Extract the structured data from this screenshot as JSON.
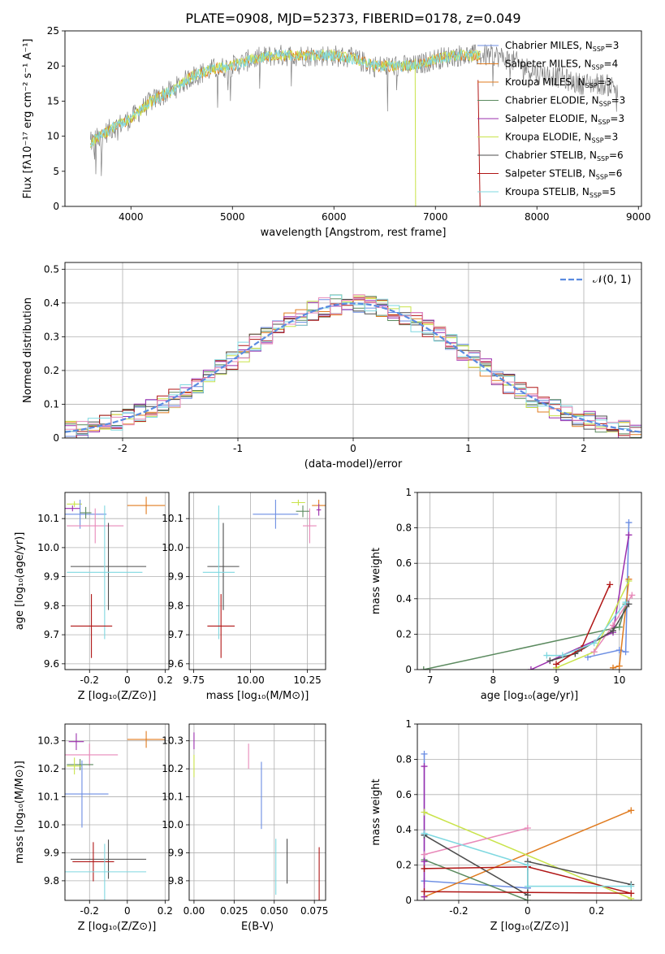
{
  "figure_title": "PLATE=0908, MJD=52373, FIBERID=0178, z=0.049",
  "colors": {
    "c1": "#6c8ee3",
    "c2": "#e07b1f",
    "c3": "#5b8a5f",
    "c4": "#9b2fae",
    "c5": "#c9e34a",
    "c6": "#4d4d4d",
    "c7": "#b01515",
    "c8": "#7fd8e0",
    "pink": "#e889b9",
    "grey": "#808080",
    "gauss": "#5a8be0"
  },
  "chart_data": [
    {
      "type": "line",
      "id": "spectrum",
      "xlabel": "wavelength [Angstrom, rest frame]",
      "ylabel": "Flux [fλ10⁻¹⁷ erg cm⁻² s⁻¹ A⁻¹]",
      "xlim": [
        3350,
        9030
      ],
      "ylim": [
        0,
        25
      ],
      "xticks": [
        4000,
        5000,
        6000,
        7000,
        8000,
        9000
      ],
      "yticks": [
        0,
        5,
        10,
        15,
        20,
        25
      ],
      "data_trend_x": [
        3600,
        3800,
        4000,
        4200,
        4400,
        4600,
        4800,
        5000,
        5200,
        5400,
        5600,
        5800,
        6000,
        6200,
        6400,
        6600,
        6800,
        7000,
        7200,
        7400,
        7600,
        7800,
        8000,
        8200,
        8400,
        8600,
        8800
      ],
      "data_trend_y": [
        9,
        11,
        12.5,
        15,
        16.5,
        18.5,
        19.5,
        20,
        21,
        21.5,
        21.5,
        21.5,
        21.5,
        21,
        20,
        20,
        20,
        21,
        21.5,
        21.5,
        21.5,
        20.5,
        19,
        18.5,
        17.5,
        17.5,
        17
      ],
      "legend": [
        {
          "label": "Chabrier MILES, N",
          "sub": "SSP",
          "val": "=3",
          "color": "c1"
        },
        {
          "label": "Salpeter MILES, N",
          "sub": "SSP",
          "val": "=4",
          "color": "c2"
        },
        {
          "label": "Kroupa MILES, N",
          "sub": "SSP",
          "val": "=3",
          "color": "c2"
        },
        {
          "label": "Chabrier ELODIE, N",
          "sub": "SSP",
          "val": "=3",
          "color": "c3"
        },
        {
          "label": "Salpeter ELODIE, N",
          "sub": "SSP",
          "val": "=3",
          "color": "c4"
        },
        {
          "label": "Kroupa ELODIE, N",
          "sub": "SSP",
          "val": "=3",
          "color": "c5"
        },
        {
          "label": "Chabrier STELIB, N",
          "sub": "SSP",
          "val": "=6",
          "color": "c6"
        },
        {
          "label": "Salpeter STELIB, N",
          "sub": "SSP",
          "val": "=6",
          "color": "c7"
        },
        {
          "label": "Kroupa STELIB, N",
          "sub": "SSP",
          "val": "=5",
          "color": "c8"
        }
      ]
    },
    {
      "type": "area",
      "id": "residuals",
      "xlabel": "(data-model)/error",
      "ylabel": "Normed distribution",
      "xlim": [
        -2.5,
        2.5
      ],
      "ylim": [
        0,
        0.52
      ],
      "xticks": [
        -2,
        -1,
        0,
        1,
        2
      ],
      "yticks": [
        0.0,
        0.1,
        0.2,
        0.3,
        0.4,
        0.5
      ],
      "legend": "𝒩(0, 1)",
      "series_colors": [
        "c1",
        "c2",
        "c3",
        "c4",
        "c5",
        "c6",
        "c7",
        "c8",
        "pink"
      ]
    },
    {
      "type": "scatter",
      "id": "age-vs-Z",
      "xlabel": "Z [log₁₀(Z/Z⊙)]",
      "ylabel": "age  [log₁₀(age/yr)]",
      "xlim": [
        -0.33,
        0.22
      ],
      "ylim": [
        9.58,
        10.19
      ],
      "xticks": [
        -0.2,
        0.0,
        0.2
      ],
      "ytick_labels": [
        "9.6",
        "9.7",
        "9.8",
        "9.9",
        "10.0",
        "10.1"
      ],
      "yticks": [
        9.6,
        9.7,
        9.8,
        9.9,
        10.0,
        10.1
      ],
      "points": [
        {
          "x": -0.28,
          "y": 10.15,
          "xerr": 0.04,
          "yerr": 0.01,
          "color": "c5"
        },
        {
          "x": -0.29,
          "y": 10.135,
          "xerr": 0.04,
          "yerr": 0.01,
          "color": "c4"
        },
        {
          "x": -0.25,
          "y": 10.115,
          "xerr": 0.14,
          "yerr": 0.05,
          "color": "c1"
        },
        {
          "x": -0.22,
          "y": 10.12,
          "xerr": 0.03,
          "yerr": 0.02,
          "color": "c3"
        },
        {
          "x": 0.1,
          "y": 10.145,
          "xerr": 0.1,
          "yerr": 0.03,
          "color": "c2"
        },
        {
          "x": -0.17,
          "y": 10.075,
          "xerr": 0.15,
          "yerr": 0.06,
          "color": "pink"
        },
        {
          "x": -0.1,
          "y": 9.935,
          "xerr": 0.2,
          "yerr": 0.15,
          "color": "c6"
        },
        {
          "x": -0.12,
          "y": 9.915,
          "xerr": 0.2,
          "yerr": 0.23,
          "color": "c8"
        },
        {
          "x": -0.19,
          "y": 9.73,
          "xerr": 0.11,
          "yerr": 0.11,
          "color": "c7"
        }
      ]
    },
    {
      "type": "scatter",
      "id": "age-vs-mass",
      "xlabel": "mass [log₁₀(M/M⊙)]",
      "xlim": [
        9.73,
        10.33
      ],
      "ylim": [
        9.58,
        10.19
      ],
      "xticks": [
        9.75,
        10.0,
        10.25
      ],
      "xtick_labels": [
        "9.75",
        "10.00",
        "10.25"
      ],
      "yticks": [
        9.6,
        9.7,
        9.8,
        9.9,
        10.0,
        10.1
      ],
      "ytick_labels": [
        "9.6",
        "9.7",
        "9.8",
        "9.9",
        "10.0",
        "10.1"
      ],
      "points": [
        {
          "x": 10.21,
          "y": 10.155,
          "xerr": 0.03,
          "yerr": 0.01,
          "color": "c5"
        },
        {
          "x": 10.3,
          "y": 10.145,
          "xerr": 0.03,
          "yerr": 0.02,
          "color": "c2"
        },
        {
          "x": 10.3,
          "y": 10.13,
          "xerr": 0.01,
          "yerr": 0.02,
          "color": "c4"
        },
        {
          "x": 10.23,
          "y": 10.125,
          "xerr": 0.03,
          "yerr": 0.02,
          "color": "c3"
        },
        {
          "x": 10.11,
          "y": 10.115,
          "xerr": 0.1,
          "yerr": 0.05,
          "color": "c1"
        },
        {
          "x": 10.26,
          "y": 10.075,
          "xerr": 0.03,
          "yerr": 0.06,
          "color": "pink"
        },
        {
          "x": 9.88,
          "y": 9.935,
          "xerr": 0.07,
          "yerr": 0.15,
          "color": "c6"
        },
        {
          "x": 9.86,
          "y": 9.915,
          "xerr": 0.07,
          "yerr": 0.23,
          "color": "c8"
        },
        {
          "x": 9.87,
          "y": 9.73,
          "xerr": 0.06,
          "yerr": 0.11,
          "color": "c7"
        }
      ]
    },
    {
      "type": "line",
      "id": "massweight-vs-age",
      "xlabel": "age  [log₁₀(age/yr)]",
      "ylabel": "mass weight",
      "xlim": [
        6.8,
        10.35
      ],
      "ylim": [
        0,
        1
      ],
      "xticks": [
        7,
        8,
        9,
        10
      ],
      "yticks": [
        0.0,
        0.2,
        0.4,
        0.6,
        0.8,
        1.0
      ],
      "series": [
        {
          "color": "c1",
          "x": [
            9.5,
            10.0,
            10.1,
            10.15
          ],
          "y": [
            0.07,
            0.11,
            0.1,
            0.83
          ]
        },
        {
          "color": "c2",
          "x": [
            9.9,
            10.0,
            10.15
          ],
          "y": [
            0.01,
            0.02,
            0.51
          ]
        },
        {
          "color": "c3",
          "x": [
            6.9,
            10.0,
            10.1
          ],
          "y": [
            0.0,
            0.24,
            0.37
          ]
        },
        {
          "color": "c4",
          "x": [
            8.6,
            9.9,
            10.15
          ],
          "y": [
            0.0,
            0.21,
            0.76
          ]
        },
        {
          "color": "c5",
          "x": [
            9.0,
            9.6,
            10.15
          ],
          "y": [
            0.01,
            0.1,
            0.5
          ]
        },
        {
          "color": "pink",
          "x": [
            9.6,
            9.9,
            10.2
          ],
          "y": [
            0.1,
            0.25,
            0.42
          ]
        },
        {
          "color": "c6",
          "x": [
            8.9,
            9.3,
            9.9,
            10.15
          ],
          "y": [
            0.05,
            0.09,
            0.22,
            0.37
          ]
        },
        {
          "color": "c7",
          "x": [
            9.0,
            9.4,
            9.85
          ],
          "y": [
            0.03,
            0.12,
            0.48
          ]
        },
        {
          "color": "c8",
          "x": [
            8.85,
            9.1,
            9.6,
            10.1
          ],
          "y": [
            0.08,
            0.08,
            0.15,
            0.38
          ]
        }
      ]
    },
    {
      "type": "scatter",
      "id": "mass-vs-Z",
      "xlabel": "Z [log₁₀(Z/Z⊙)]",
      "ylabel": "mass [log₁₀(M/M⊙)]",
      "xlim": [
        -0.33,
        0.22
      ],
      "ylim": [
        9.73,
        10.36
      ],
      "xticks": [
        -0.2,
        0.0,
        0.2
      ],
      "yticks": [
        9.8,
        9.9,
        10.0,
        10.1,
        10.2,
        10.3
      ],
      "ytick_labels": [
        "9.8",
        "9.9",
        "10.0",
        "10.1",
        "10.2",
        "10.3"
      ],
      "points": [
        {
          "x": -0.27,
          "y": 10.297,
          "xerr": 0.04,
          "yerr": 0.03,
          "color": "c4"
        },
        {
          "x": 0.1,
          "y": 10.305,
          "xerr": 0.1,
          "yerr": 0.03,
          "color": "c2"
        },
        {
          "x": -0.2,
          "y": 10.25,
          "xerr": 0.15,
          "yerr": 0.04,
          "color": "pink"
        },
        {
          "x": -0.25,
          "y": 10.215,
          "xerr": 0.07,
          "yerr": 0.02,
          "color": "c3"
        },
        {
          "x": -0.28,
          "y": 10.21,
          "xerr": 0.04,
          "yerr": 0.03,
          "color": "c5"
        },
        {
          "x": -0.24,
          "y": 10.11,
          "xerr": 0.14,
          "yerr": 0.12,
          "color": "c1"
        },
        {
          "x": -0.1,
          "y": 9.877,
          "xerr": 0.2,
          "yerr": 0.07,
          "color": "c6"
        },
        {
          "x": -0.18,
          "y": 9.868,
          "xerr": 0.11,
          "yerr": 0.07,
          "color": "c7"
        },
        {
          "x": -0.12,
          "y": 9.832,
          "xerr": 0.22,
          "yerr": 0.1,
          "color": "c8"
        }
      ]
    },
    {
      "type": "scatter",
      "id": "mass-vs-ebv",
      "xlabel": "E(B-V)",
      "xlim": [
        -0.003,
        0.082
      ],
      "ylim": [
        9.73,
        10.36
      ],
      "xticks": [
        0.0,
        0.025,
        0.05,
        0.075
      ],
      "xtick_labels": [
        "0.00",
        "0.025",
        "0.050",
        "0.075"
      ],
      "yticks": [
        9.8,
        9.9,
        10.0,
        10.1,
        10.2,
        10.3
      ],
      "ytick_labels": [
        "9.8",
        "9.9",
        "10.0",
        "10.1",
        "10.2",
        "10.3"
      ],
      "points": [
        {
          "x": 0.0,
          "y": 10.3,
          "xerr": 0,
          "yerr": 0.03,
          "color": "c4"
        },
        {
          "x": 0.0,
          "y": 10.21,
          "xerr": 0,
          "yerr": 0.04,
          "color": "c5"
        },
        {
          "x": 0.034,
          "y": 10.245,
          "xerr": 0,
          "yerr": 0.045,
          "color": "pink"
        },
        {
          "x": 0.042,
          "y": 10.105,
          "xerr": 0,
          "yerr": 0.12,
          "color": "c1"
        },
        {
          "x": 0.051,
          "y": 9.85,
          "xerr": 0,
          "yerr": 0.1,
          "color": "c8"
        },
        {
          "x": 0.058,
          "y": 9.87,
          "xerr": 0,
          "yerr": 0.08,
          "color": "c6"
        },
        {
          "x": 0.078,
          "y": 9.8,
          "xerr": 0,
          "yerr": 0.12,
          "color": "c7"
        }
      ]
    },
    {
      "type": "line",
      "id": "massweight-vs-Z",
      "xlabel": "Z [log₁₀(Z/Z⊙)]",
      "ylabel": "mass weight",
      "xlim": [
        -0.32,
        0.33
      ],
      "ylim": [
        0,
        1
      ],
      "xticks": [
        -0.2,
        0.0,
        0.2
      ],
      "yticks": [
        0.0,
        0.2,
        0.4,
        0.6,
        0.8,
        1.0
      ],
      "series": [
        {
          "color": "c1",
          "x": [
            -0.3,
            -0.3,
            -0.3,
            0.0,
            0.0
          ],
          "y": [
            0.83,
            0.11,
            0.11,
            0.07,
            0.07
          ]
        },
        {
          "color": "c2",
          "x": [
            -0.3,
            0.3
          ],
          "y": [
            0.02,
            0.51
          ]
        },
        {
          "color": "c3",
          "x": [
            -0.3,
            0.0
          ],
          "y": [
            0.23,
            0.0
          ]
        },
        {
          "color": "c4",
          "x": [
            -0.3,
            -0.3,
            -0.3
          ],
          "y": [
            0.76,
            0.22,
            0.02
          ]
        },
        {
          "color": "c5",
          "x": [
            -0.3,
            0.3
          ],
          "y": [
            0.5,
            0.01
          ]
        },
        {
          "color": "pink",
          "x": [
            -0.3,
            0.0
          ],
          "y": [
            0.26,
            0.41
          ]
        },
        {
          "color": "c6",
          "x": [
            -0.3,
            0.0,
            0.0,
            0.3
          ],
          "y": [
            0.37,
            0.03,
            0.22,
            0.09
          ]
        },
        {
          "color": "c7",
          "x": [
            -0.3,
            0.0,
            0.0,
            0.3,
            -0.3
          ],
          "y": [
            0.18,
            0.19,
            0.19,
            0.04,
            0.05
          ]
        },
        {
          "color": "c8",
          "x": [
            -0.3,
            0.0,
            0.0,
            0.3
          ],
          "y": [
            0.38,
            0.2,
            0.08,
            0.08
          ]
        }
      ]
    }
  ]
}
